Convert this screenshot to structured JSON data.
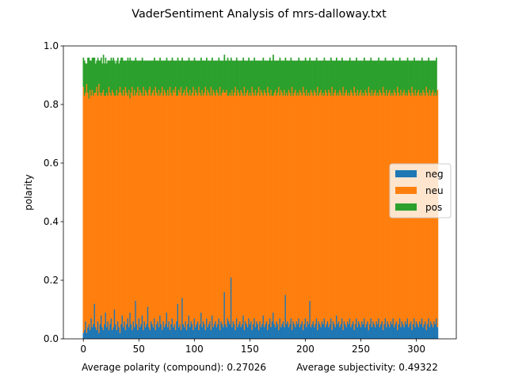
{
  "chart_data": {
    "type": "bar",
    "stacked": true,
    "title": "VaderSentiment Analysis of mrs-dalloway.txt",
    "xlabel": "Average polarity (compound): 0.27026          Average subjectivity: 0.49322",
    "ylabel": "polarity",
    "xlim": [
      -18,
      336
    ],
    "ylim": [
      0,
      1.0
    ],
    "xticks": [
      0,
      50,
      100,
      150,
      200,
      250,
      300
    ],
    "xtick_labels": [
      "0",
      "50",
      "100",
      "150",
      "200",
      "250",
      "300"
    ],
    "yticks": [
      0.0,
      0.2,
      0.4,
      0.6,
      0.8,
      1.0
    ],
    "ytick_labels": [
      "0.0",
      "0.2",
      "0.4",
      "0.6",
      "0.8",
      "1.0"
    ],
    "grid": false,
    "legend_position": "center-right",
    "n_points": 320,
    "series": [
      {
        "name": "neg",
        "color": "#1f77b4",
        "values": [
          0.02,
          0.03,
          0.06,
          0.02,
          0.04,
          0.05,
          0.03,
          0.07,
          0.04,
          0.05,
          0.12,
          0.04,
          0.03,
          0.06,
          0.02,
          0.05,
          0.08,
          0.04,
          0.03,
          0.05,
          0.09,
          0.04,
          0.06,
          0.03,
          0.05,
          0.07,
          0.03,
          0.04,
          0.1,
          0.05,
          0.03,
          0.06,
          0.04,
          0.02,
          0.05,
          0.08,
          0.04,
          0.06,
          0.03,
          0.05,
          0.07,
          0.04,
          0.09,
          0.05,
          0.03,
          0.06,
          0.04,
          0.13,
          0.05,
          0.03,
          0.07,
          0.04,
          0.05,
          0.08,
          0.03,
          0.06,
          0.04,
          0.05,
          0.11,
          0.04,
          0.03,
          0.06,
          0.05,
          0.04,
          0.07,
          0.03,
          0.05,
          0.06,
          0.04,
          0.08,
          0.05,
          0.03,
          0.06,
          0.04,
          0.05,
          0.09,
          0.04,
          0.06,
          0.03,
          0.05,
          0.07,
          0.04,
          0.05,
          0.03,
          0.06,
          0.12,
          0.04,
          0.05,
          0.03,
          0.14,
          0.05,
          0.04,
          0.06,
          0.03,
          0.05,
          0.08,
          0.04,
          0.06,
          0.05,
          0.03,
          0.07,
          0.04,
          0.05,
          0.06,
          0.03,
          0.05,
          0.09,
          0.04,
          0.06,
          0.05,
          0.03,
          0.07,
          0.04,
          0.05,
          0.06,
          0.03,
          0.08,
          0.04,
          0.05,
          0.06,
          0.04,
          0.05,
          0.07,
          0.03,
          0.06,
          0.05,
          0.04,
          0.16,
          0.05,
          0.04,
          0.07,
          0.06,
          0.05,
          0.21,
          0.04,
          0.06,
          0.05,
          0.03,
          0.07,
          0.04,
          0.05,
          0.06,
          0.04,
          0.05,
          0.08,
          0.03,
          0.06,
          0.05,
          0.04,
          0.07,
          0.05,
          0.06,
          0.03,
          0.05,
          0.07,
          0.04,
          0.06,
          0.05,
          0.03,
          0.06,
          0.04,
          0.05,
          0.08,
          0.04,
          0.05,
          0.06,
          0.03,
          0.05,
          0.07,
          0.04,
          0.06,
          0.09,
          0.05,
          0.04,
          0.06,
          0.05,
          0.03,
          0.07,
          0.04,
          0.05,
          0.06,
          0.04,
          0.15,
          0.05,
          0.06,
          0.04,
          0.05,
          0.07,
          0.03,
          0.06,
          0.05,
          0.04,
          0.06,
          0.05,
          0.07,
          0.04,
          0.05,
          0.06,
          0.03,
          0.05,
          0.07,
          0.04,
          0.06,
          0.05,
          0.13,
          0.04,
          0.05,
          0.06,
          0.04,
          0.05,
          0.07,
          0.03,
          0.06,
          0.05,
          0.04,
          0.06,
          0.05,
          0.07,
          0.04,
          0.05,
          0.06,
          0.04,
          0.05,
          0.07,
          0.03,
          0.06,
          0.05,
          0.04,
          0.08,
          0.05,
          0.06,
          0.04,
          0.05,
          0.07,
          0.03,
          0.06,
          0.05,
          0.04,
          0.06,
          0.05,
          0.07,
          0.04,
          0.05,
          0.06,
          0.03,
          0.05,
          0.07,
          0.04,
          0.06,
          0.05,
          0.04,
          0.06,
          0.05,
          0.07,
          0.04,
          0.05,
          0.06,
          0.03,
          0.05,
          0.07,
          0.04,
          0.06,
          0.05,
          0.04,
          0.06,
          0.05,
          0.07,
          0.04,
          0.05,
          0.06,
          0.03,
          0.05,
          0.07,
          0.04,
          0.06,
          0.05,
          0.04,
          0.06,
          0.05,
          0.07,
          0.04,
          0.05,
          0.06,
          0.03,
          0.05,
          0.07,
          0.04,
          0.06,
          0.05,
          0.04,
          0.06,
          0.05,
          0.07,
          0.04,
          0.05,
          0.06,
          0.03,
          0.05,
          0.07,
          0.04,
          0.06,
          0.05,
          0.04,
          0.06,
          0.05,
          0.07,
          0.04,
          0.05,
          0.06,
          0.03,
          0.05,
          0.07,
          0.04,
          0.06,
          0.05,
          0.04,
          0.06,
          0.05,
          0.07,
          0.04
        ]
      },
      {
        "name": "neu",
        "color": "#ff7f0e",
        "values": [
          0.84,
          0.8,
          0.78,
          0.85,
          0.8,
          0.77,
          0.82,
          0.76,
          0.81,
          0.78,
          0.72,
          0.8,
          0.83,
          0.77,
          0.85,
          0.79,
          0.75,
          0.8,
          0.82,
          0.78,
          0.74,
          0.8,
          0.77,
          0.83,
          0.79,
          0.76,
          0.82,
          0.8,
          0.73,
          0.78,
          0.82,
          0.77,
          0.8,
          0.84,
          0.79,
          0.75,
          0.81,
          0.77,
          0.83,
          0.79,
          0.76,
          0.81,
          0.73,
          0.79,
          0.83,
          0.77,
          0.81,
          0.7,
          0.79,
          0.83,
          0.76,
          0.81,
          0.79,
          0.75,
          0.83,
          0.77,
          0.81,
          0.79,
          0.72,
          0.81,
          0.83,
          0.77,
          0.79,
          0.81,
          0.76,
          0.83,
          0.79,
          0.77,
          0.81,
          0.75,
          0.79,
          0.83,
          0.77,
          0.81,
          0.79,
          0.74,
          0.81,
          0.77,
          0.83,
          0.79,
          0.76,
          0.81,
          0.79,
          0.83,
          0.77,
          0.71,
          0.81,
          0.79,
          0.83,
          0.69,
          0.79,
          0.81,
          0.77,
          0.83,
          0.79,
          0.75,
          0.81,
          0.77,
          0.79,
          0.83,
          0.76,
          0.81,
          0.79,
          0.77,
          0.83,
          0.79,
          0.74,
          0.81,
          0.77,
          0.79,
          0.83,
          0.76,
          0.81,
          0.79,
          0.77,
          0.83,
          0.75,
          0.81,
          0.79,
          0.77,
          0.81,
          0.79,
          0.76,
          0.83,
          0.77,
          0.79,
          0.81,
          0.68,
          0.79,
          0.81,
          0.76,
          0.77,
          0.79,
          0.62,
          0.81,
          0.77,
          0.79,
          0.83,
          0.76,
          0.81,
          0.79,
          0.77,
          0.81,
          0.79,
          0.75,
          0.83,
          0.77,
          0.79,
          0.81,
          0.76,
          0.79,
          0.77,
          0.83,
          0.79,
          0.76,
          0.81,
          0.77,
          0.79,
          0.83,
          0.77,
          0.81,
          0.79,
          0.75,
          0.81,
          0.79,
          0.77,
          0.83,
          0.79,
          0.76,
          0.81,
          0.77,
          0.74,
          0.79,
          0.81,
          0.77,
          0.79,
          0.83,
          0.76,
          0.81,
          0.79,
          0.77,
          0.81,
          0.68,
          0.79,
          0.77,
          0.81,
          0.79,
          0.76,
          0.83,
          0.77,
          0.79,
          0.81,
          0.77,
          0.79,
          0.76,
          0.81,
          0.79,
          0.77,
          0.83,
          0.79,
          0.76,
          0.81,
          0.77,
          0.79,
          0.7,
          0.81,
          0.79,
          0.77,
          0.81,
          0.79,
          0.76,
          0.83,
          0.77,
          0.79,
          0.81,
          0.77,
          0.79,
          0.76,
          0.81,
          0.79,
          0.77,
          0.81,
          0.79,
          0.76,
          0.83,
          0.77,
          0.79,
          0.81,
          0.75,
          0.79,
          0.77,
          0.81,
          0.79,
          0.76,
          0.83,
          0.77,
          0.79,
          0.81,
          0.77,
          0.79,
          0.76,
          0.81,
          0.79,
          0.77,
          0.83,
          0.79,
          0.76,
          0.81,
          0.77,
          0.79,
          0.81,
          0.77,
          0.79,
          0.76,
          0.81,
          0.79,
          0.77,
          0.83,
          0.79,
          0.76,
          0.81,
          0.77,
          0.79,
          0.81,
          0.77,
          0.79,
          0.76,
          0.81,
          0.79,
          0.77,
          0.83,
          0.79,
          0.76,
          0.81,
          0.77,
          0.79,
          0.81,
          0.77,
          0.79,
          0.76,
          0.81,
          0.79,
          0.77,
          0.83,
          0.79,
          0.76,
          0.81,
          0.77,
          0.79,
          0.81,
          0.77,
          0.79,
          0.76,
          0.81,
          0.79,
          0.77,
          0.83,
          0.79,
          0.76,
          0.81,
          0.77,
          0.79,
          0.81,
          0.77,
          0.79,
          0.76,
          0.81,
          0.79,
          0.77,
          0.83,
          0.79,
          0.76,
          0.81,
          0.77,
          0.79,
          0.81,
          0.77,
          0.79,
          0.76,
          0.81
        ]
      },
      {
        "name": "pos",
        "color": "#2ca02c",
        "values": [
          0.1,
          0.12,
          0.1,
          0.07,
          0.12,
          0.14,
          0.1,
          0.12,
          0.11,
          0.13,
          0.12,
          0.1,
          0.09,
          0.13,
          0.08,
          0.11,
          0.13,
          0.1,
          0.12,
          0.11,
          0.13,
          0.1,
          0.12,
          0.09,
          0.11,
          0.13,
          0.1,
          0.12,
          0.12,
          0.11,
          0.1,
          0.13,
          0.1,
          0.09,
          0.12,
          0.13,
          0.1,
          0.12,
          0.09,
          0.11,
          0.13,
          0.1,
          0.14,
          0.11,
          0.09,
          0.12,
          0.1,
          0.13,
          0.11,
          0.09,
          0.12,
          0.1,
          0.11,
          0.13,
          0.09,
          0.12,
          0.1,
          0.11,
          0.12,
          0.1,
          0.09,
          0.12,
          0.11,
          0.1,
          0.13,
          0.09,
          0.11,
          0.12,
          0.1,
          0.13,
          0.11,
          0.09,
          0.12,
          0.1,
          0.11,
          0.13,
          0.1,
          0.12,
          0.09,
          0.11,
          0.13,
          0.1,
          0.11,
          0.09,
          0.12,
          0.13,
          0.1,
          0.11,
          0.09,
          0.13,
          0.11,
          0.1,
          0.12,
          0.09,
          0.11,
          0.13,
          0.1,
          0.12,
          0.11,
          0.09,
          0.13,
          0.1,
          0.11,
          0.12,
          0.09,
          0.11,
          0.13,
          0.1,
          0.12,
          0.11,
          0.09,
          0.13,
          0.1,
          0.11,
          0.12,
          0.09,
          0.13,
          0.1,
          0.11,
          0.12,
          0.1,
          0.11,
          0.13,
          0.09,
          0.12,
          0.11,
          0.1,
          0.13,
          0.11,
          0.1,
          0.13,
          0.12,
          0.11,
          0.13,
          0.1,
          0.12,
          0.11,
          0.09,
          0.13,
          0.1,
          0.11,
          0.12,
          0.1,
          0.11,
          0.13,
          0.09,
          0.12,
          0.11,
          0.1,
          0.13,
          0.11,
          0.12,
          0.09,
          0.11,
          0.13,
          0.1,
          0.12,
          0.11,
          0.09,
          0.12,
          0.1,
          0.11,
          0.13,
          0.1,
          0.11,
          0.12,
          0.09,
          0.11,
          0.13,
          0.1,
          0.12,
          0.14,
          0.11,
          0.1,
          0.12,
          0.11,
          0.09,
          0.13,
          0.1,
          0.11,
          0.12,
          0.1,
          0.13,
          0.11,
          0.12,
          0.1,
          0.11,
          0.13,
          0.09,
          0.12,
          0.11,
          0.1,
          0.12,
          0.11,
          0.13,
          0.1,
          0.11,
          0.12,
          0.09,
          0.11,
          0.13,
          0.1,
          0.12,
          0.11,
          0.13,
          0.1,
          0.11,
          0.12,
          0.1,
          0.11,
          0.13,
          0.09,
          0.12,
          0.11,
          0.1,
          0.12,
          0.11,
          0.13,
          0.1,
          0.11,
          0.12,
          0.1,
          0.11,
          0.13,
          0.09,
          0.12,
          0.11,
          0.1,
          0.13,
          0.11,
          0.12,
          0.1,
          0.11,
          0.13,
          0.09,
          0.12,
          0.11,
          0.1,
          0.12,
          0.11,
          0.13,
          0.1,
          0.11,
          0.12,
          0.09,
          0.11,
          0.13,
          0.1,
          0.12,
          0.11,
          0.1,
          0.12,
          0.11,
          0.13,
          0.1,
          0.11,
          0.12,
          0.09,
          0.11,
          0.13,
          0.1,
          0.12,
          0.11,
          0.1,
          0.12,
          0.11,
          0.13,
          0.1,
          0.11,
          0.12,
          0.09,
          0.11,
          0.13,
          0.1,
          0.12,
          0.11,
          0.1,
          0.12,
          0.11,
          0.13,
          0.1,
          0.11,
          0.12,
          0.09,
          0.11,
          0.13,
          0.1,
          0.12,
          0.11,
          0.1,
          0.12,
          0.11,
          0.13,
          0.1,
          0.11,
          0.12,
          0.09,
          0.11,
          0.13,
          0.1,
          0.12,
          0.11,
          0.1,
          0.12,
          0.11,
          0.13,
          0.1,
          0.11,
          0.12,
          0.09,
          0.11,
          0.13,
          0.1,
          0.12,
          0.11,
          0.1,
          0.12,
          0.11,
          0.13
        ]
      }
    ]
  }
}
